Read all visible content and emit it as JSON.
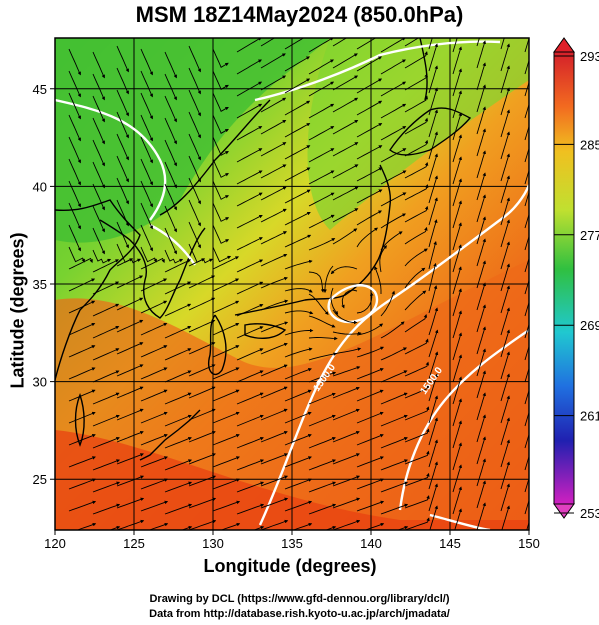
{
  "title": "MSM 18Z14May2024 (850.0hPa)",
  "xaxis": {
    "label": "Longitude (degrees)",
    "range": [
      120,
      150
    ],
    "ticks": [
      "120",
      "125",
      "130",
      "135",
      "140",
      "145",
      "150"
    ]
  },
  "yaxis": {
    "label": "Latitude  (degrees)",
    "range": [
      22.4,
      47.6
    ],
    "ticks": [
      "25",
      "30",
      "35",
      "40",
      "45"
    ]
  },
  "colorbar": {
    "ticks": [
      "293",
      "285",
      "277",
      "269",
      "261",
      "253"
    ],
    "range_K": [
      253,
      293
    ]
  },
  "contours": [
    {
      "label": "1500.0",
      "longitude": 137.5
    },
    {
      "label": "1500.0",
      "longitude": 143.5
    }
  ],
  "credits": {
    "line1": "Drawing by DCL (https://www.gfd-dennou.org/library/dcl/)",
    "line2": "Data from http://database.rish.kyoto-u.ac.jp/arch/jmadata/"
  },
  "colors": {
    "warm": "#ee4a10",
    "mid": "#f0a020",
    "cool": "#50cc30",
    "land_outline": "#000000",
    "contour": "#ffffff"
  }
}
